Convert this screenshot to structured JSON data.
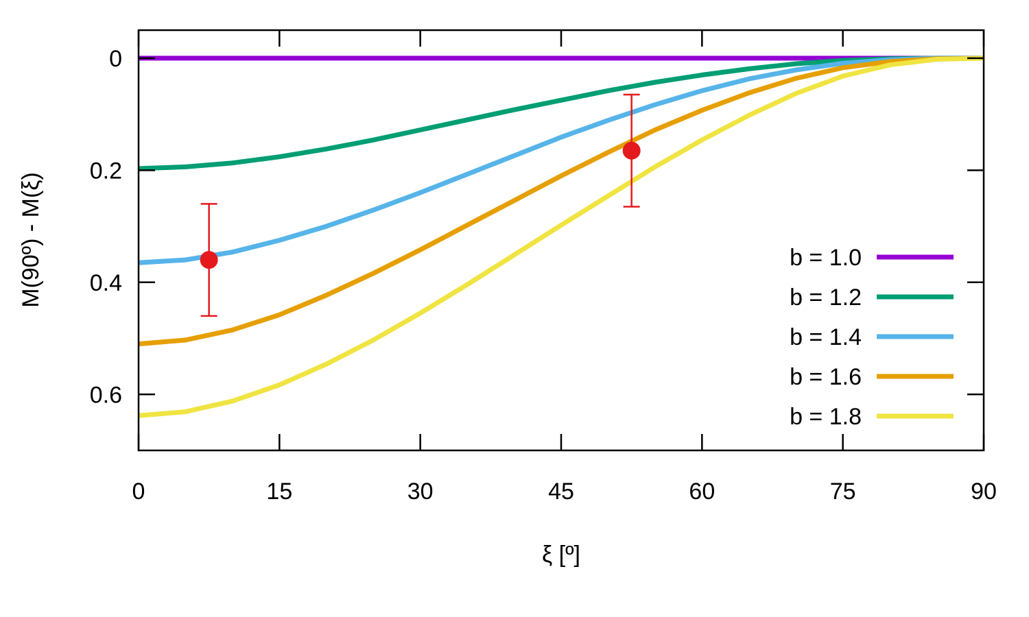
{
  "chart_data": {
    "type": "line",
    "title": "",
    "xlabel": "ξ [º]",
    "ylabel": "M(90º) - M(ξ)",
    "xlim": [
      0,
      90
    ],
    "ylim": [
      0.7,
      -0.05
    ],
    "y_axis_inverted": true,
    "grid": false,
    "legend_position": "bottom-right",
    "x_ticks": [
      "0",
      "15",
      "30",
      "45",
      "60",
      "75",
      "90"
    ],
    "y_ticks": [
      "0",
      "0.2",
      "0.4",
      "0.6"
    ],
    "x": [
      0,
      5,
      10,
      15,
      20,
      25,
      30,
      35,
      40,
      45,
      50,
      55,
      60,
      65,
      70,
      75,
      80,
      85,
      90
    ],
    "series": [
      {
        "name": "b = 1.0",
        "color": "#9400d3",
        "values": [
          0,
          0,
          0,
          0,
          0,
          0,
          0,
          0,
          0,
          0,
          0,
          0,
          0,
          0,
          0,
          0,
          0,
          0,
          0
        ]
      },
      {
        "name": "b = 1.2",
        "color": "#009e73",
        "values": [
          0.197,
          0.194,
          0.187,
          0.176,
          0.162,
          0.146,
          0.128,
          0.11,
          0.092,
          0.075,
          0.058,
          0.043,
          0.03,
          0.019,
          0.01,
          0.004,
          0.001,
          0.0,
          0.0
        ]
      },
      {
        "name": "b = 1.4",
        "color": "#56b4e9",
        "values": [
          0.365,
          0.36,
          0.346,
          0.325,
          0.3,
          0.271,
          0.24,
          0.207,
          0.174,
          0.141,
          0.111,
          0.083,
          0.058,
          0.037,
          0.021,
          0.009,
          0.003,
          0.0,
          0.0
        ]
      },
      {
        "name": "b = 1.6",
        "color": "#e69f00",
        "values": [
          0.51,
          0.503,
          0.485,
          0.458,
          0.423,
          0.384,
          0.342,
          0.298,
          0.254,
          0.21,
          0.168,
          0.128,
          0.093,
          0.062,
          0.036,
          0.017,
          0.006,
          0.001,
          0.0
        ]
      },
      {
        "name": "b = 1.8",
        "color": "#f0e442",
        "values": [
          0.638,
          0.631,
          0.612,
          0.583,
          0.546,
          0.503,
          0.455,
          0.404,
          0.351,
          0.298,
          0.246,
          0.194,
          0.146,
          0.102,
          0.063,
          0.032,
          0.012,
          0.002,
          0.0
        ]
      }
    ],
    "measurements": {
      "color": "#e41a1c",
      "points": [
        {
          "x": 7.5,
          "y": 0.36,
          "y_low": 0.26,
          "y_high": 0.46
        },
        {
          "x": 52.5,
          "y": 0.165,
          "y_low": 0.065,
          "y_high": 0.265
        }
      ]
    }
  }
}
